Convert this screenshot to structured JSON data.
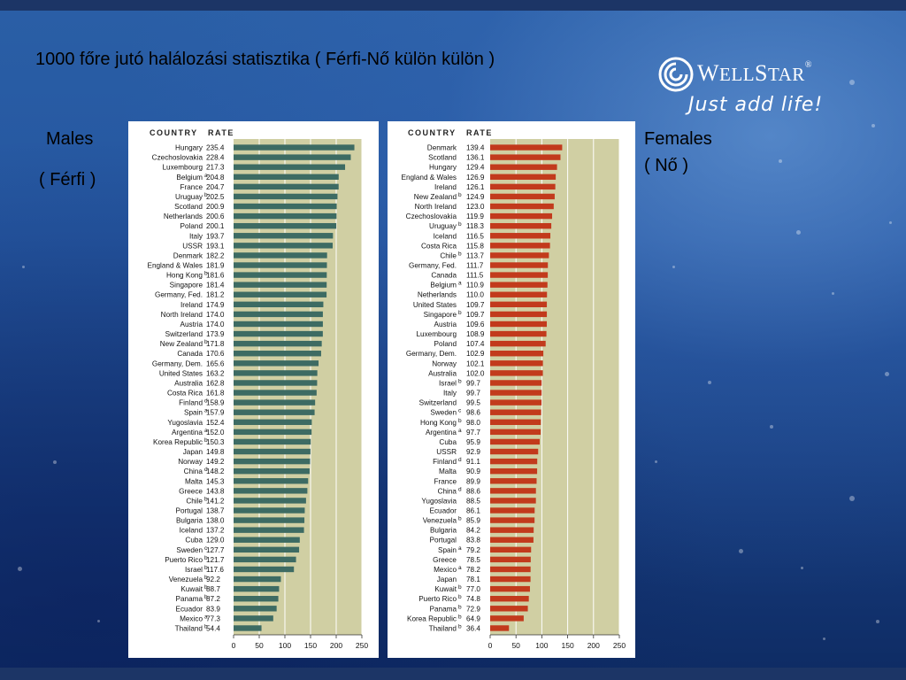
{
  "slide": {
    "title": "1000 főre jutó halálozási statisztika ( Férfi-Nő külön külön )",
    "males_label": "Males",
    "males_sub": "( Férfi )",
    "females_label": "Females",
    "females_sub": "(  Nő )"
  },
  "logo": {
    "word_w": "W",
    "word_ell": "ELL",
    "word_s": "S",
    "word_tar": "TAR",
    "reg": "®",
    "tagline": "Just add life!",
    "icon": "swirl-icon"
  },
  "colors": {
    "males_bar": "#3d6b63",
    "females_bar": "#c23a1c",
    "plot_bg": "#d0cfa3"
  },
  "chart_data": [
    {
      "type": "bar",
      "orientation": "horizontal",
      "column_headers": [
        "COUNTRY",
        "RATE"
      ],
      "categories": [
        "Hungary",
        "Czechoslovakia",
        "Luxembourg",
        "Belgium",
        "France",
        "Uruguay",
        "Scotland",
        "Netherlands",
        "Poland",
        "Italy",
        "USSR",
        "Denmark",
        "England & Wales",
        "Hong Kong",
        "Singapore",
        "Germany, Fed.",
        "Ireland",
        "North Ireland",
        "Austria",
        "Switzerland",
        "New Zealand",
        "Canada",
        "Germany, Dem.",
        "United States",
        "Australia",
        "Costa Rica",
        "Finland",
        "Spain",
        "Yugoslavia",
        "Argentina",
        "Korea Republic",
        "Japan",
        "Norway",
        "China",
        "Malta",
        "Greece",
        "Chile",
        "Portugal",
        "Bulgaria",
        "Iceland",
        "Cuba",
        "Sweden",
        "Puerto Rico",
        "Israel",
        "Venezuela",
        "Kuwait",
        "Panama",
        "Ecuador",
        "Mexico",
        "Thailand"
      ],
      "notes": [
        "",
        "",
        "",
        "a",
        "",
        "b",
        "",
        "",
        "",
        "",
        "",
        "",
        "",
        "b",
        "",
        "",
        "",
        "",
        "",
        "",
        "b",
        "",
        "",
        "",
        "",
        "",
        "d",
        "a",
        "",
        "a",
        "b",
        "",
        "",
        "d",
        "",
        "",
        "b",
        "",
        "",
        "",
        "",
        "c",
        "b",
        "b",
        "b",
        "b",
        "b",
        "",
        "a",
        "b"
      ],
      "value_labels": [
        "235.4",
        "228.4",
        "217.3",
        "204.8",
        "204.7",
        "202.5",
        "200.9",
        "200.6",
        "200.1",
        "193.7",
        "193.1",
        "182.2",
        "181.9",
        "181.6",
        "181.4",
        "181.2",
        "174.9",
        "174.0",
        "174.0",
        "173.9",
        "171.8",
        "170.6",
        "165.6",
        "163.2",
        "162.8",
        "161.8",
        "158.9",
        "157.9",
        "152.4",
        "152.0",
        "150.3",
        "149.8",
        "149.2",
        "148.2",
        "145.3",
        "143.8",
        "141.2",
        "138.7",
        "138.0",
        "137.2",
        "129.0",
        "127.7",
        "121.7",
        "117.6",
        "92.2",
        "88.7",
        "87.2",
        "83.9",
        "77.3",
        "54.4"
      ],
      "values": [
        235.4,
        228.4,
        217.3,
        204.8,
        204.7,
        202.5,
        200.9,
        200.6,
        200.1,
        193.7,
        193.1,
        182.2,
        181.9,
        181.6,
        181.4,
        181.2,
        174.9,
        174.0,
        174.0,
        173.9,
        171.8,
        170.6,
        165.6,
        163.2,
        162.8,
        161.8,
        158.9,
        157.9,
        152.4,
        152.0,
        150.3,
        149.8,
        149.2,
        148.2,
        145.3,
        143.8,
        141.2,
        138.7,
        138.0,
        137.2,
        129.0,
        127.7,
        121.7,
        117.6,
        92.2,
        88.7,
        87.2,
        83.9,
        77.3,
        54.4
      ],
      "xlim": [
        0,
        250
      ],
      "xticks": [
        "0",
        "50",
        "100",
        "150",
        "200",
        "250"
      ],
      "grid": true
    },
    {
      "type": "bar",
      "orientation": "horizontal",
      "column_headers": [
        "COUNTRY",
        "RATE"
      ],
      "categories": [
        "Denmark",
        "Scotland",
        "Hungary",
        "England & Wales",
        "Ireland",
        "New Zealand",
        "North Ireland",
        "Czechoslovakia",
        "Uruguay",
        "Iceland",
        "Costa Rica",
        "Chile",
        "Germany, Fed.",
        "Canada",
        "Belgium",
        "Netherlands",
        "United States",
        "Singapore",
        "Austria",
        "Luxembourg",
        "Poland",
        "Germany, Dem.",
        "Norway",
        "Australia",
        "Israel",
        "Italy",
        "Switzerland",
        "Sweden",
        "Hong Kong",
        "Argentina",
        "Cuba",
        "USSR",
        "Finland",
        "Malta",
        "France",
        "China",
        "Yugoslavia",
        "Ecuador",
        "Venezuela",
        "Bulgaria",
        "Portugal",
        "Spain",
        "Greece",
        "Mexico",
        "Japan",
        "Kuwait",
        "Puerto Rico",
        "Panama",
        "Korea Republic",
        "Thailand"
      ],
      "notes": [
        "",
        "",
        "",
        "",
        "",
        "b",
        "",
        "",
        "b",
        "",
        "",
        "b",
        "",
        "",
        "a",
        "",
        "",
        "b",
        "",
        "",
        "",
        "",
        "",
        "",
        "b",
        "",
        "",
        "c",
        "b",
        "a",
        "",
        "",
        "d",
        "",
        "",
        "d",
        "",
        "",
        "b",
        "",
        "",
        "a",
        "",
        "a",
        "",
        "b",
        "b",
        "b",
        "b",
        "b"
      ],
      "value_labels": [
        "139.4",
        "136.1",
        "129.4",
        "126.9",
        "126.1",
        "124.9",
        "123.0",
        "119.9",
        "118.3",
        "116.5",
        "115.8",
        "113.7",
        "111.7",
        "111.5",
        "110.9",
        "110.0",
        "109.7",
        "109.7",
        "109.6",
        "108.9",
        "107.4",
        "102.9",
        "102.1",
        "102.0",
        "99.7",
        "99.7",
        "99.5",
        "98.6",
        "98.0",
        "97.7",
        "95.9",
        "92.9",
        "91.1",
        "90.9",
        "89.9",
        "88.6",
        "88.5",
        "86.1",
        "85.9",
        "84.2",
        "83.8",
        "79.2",
        "78.5",
        "78.2",
        "78.1",
        "77.0",
        "74.8",
        "72.9",
        "64.9",
        "36.4"
      ],
      "values": [
        139.4,
        136.1,
        129.4,
        126.9,
        126.1,
        124.9,
        123.0,
        119.9,
        118.3,
        116.5,
        115.8,
        113.7,
        111.7,
        111.5,
        110.9,
        110.0,
        109.7,
        109.7,
        109.6,
        108.9,
        107.4,
        102.9,
        102.1,
        102.0,
        99.7,
        99.7,
        99.5,
        98.6,
        98.0,
        97.7,
        95.9,
        92.9,
        91.1,
        90.9,
        89.9,
        88.6,
        88.5,
        86.1,
        85.9,
        84.2,
        83.8,
        79.2,
        78.5,
        78.2,
        78.1,
        77.0,
        74.8,
        72.9,
        64.9,
        36.4
      ],
      "xlim": [
        0,
        250
      ],
      "xticks": [
        "0",
        "50",
        "100",
        "150",
        "200",
        "250"
      ],
      "grid": true
    }
  ]
}
